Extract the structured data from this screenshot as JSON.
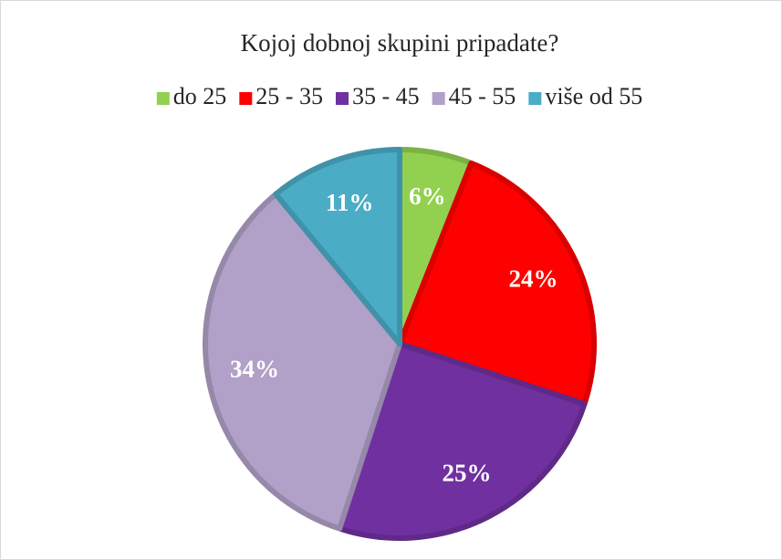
{
  "chart_data": {
    "type": "pie",
    "title": "Kojoj dobnoj skupini pripadate?",
    "categories": [
      "do 25",
      "25 - 35",
      "35 - 45",
      "45 - 55",
      "više od 55"
    ],
    "values": [
      6,
      24,
      25,
      34,
      11
    ],
    "value_labels": [
      "6%",
      "24%",
      "25%",
      "34%",
      "11%"
    ],
    "colors": [
      "#92d050",
      "#ff0000",
      "#7030a0",
      "#b1a0c7",
      "#4bacc6"
    ],
    "legend": "top"
  }
}
